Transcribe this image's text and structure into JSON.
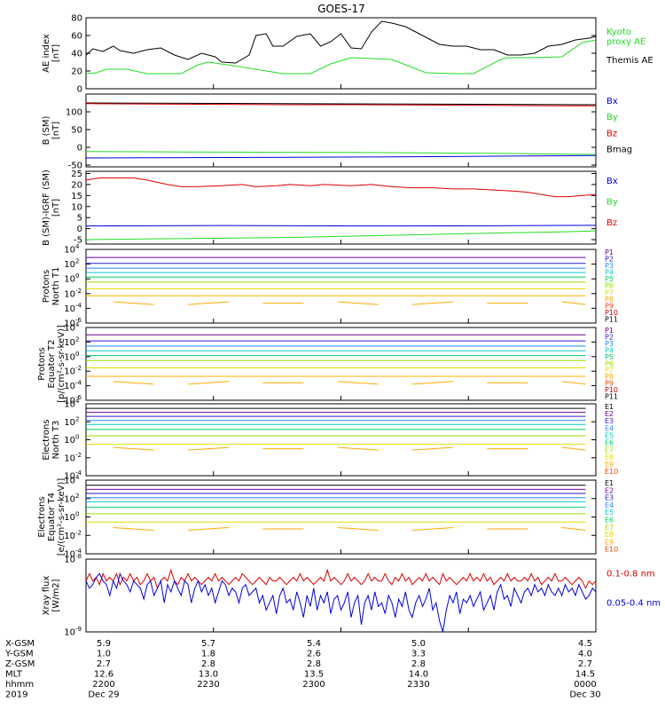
{
  "title": "GOES-17",
  "colors": {
    "black": "#000000",
    "green": "#22dd22",
    "red": "#dd0000",
    "blue": "#0000dd",
    "pal": [
      "#000000",
      "#6a0090",
      "#2a1acc",
      "#2288ff",
      "#00cccc",
      "#00cc66",
      "#99dd00",
      "#dddd00",
      "#ffaa00",
      "#ee4400",
      "#cc0000"
    ]
  },
  "footer": {
    "rows": [
      {
        "label": "X-GSM",
        "values": [
          "5.9",
          "5.7",
          "5.4",
          "5.0",
          "4.5"
        ]
      },
      {
        "label": "Y-GSM",
        "values": [
          "1.0",
          "1.8",
          "2.6",
          "3.3",
          "4.0"
        ]
      },
      {
        "label": "Z-GSM",
        "values": [
          "2.7",
          "2.8",
          "2.8",
          "2.8",
          "2.7"
        ]
      },
      {
        "label": "MLT",
        "values": [
          "12.6",
          "13.0",
          "13.5",
          "14.0",
          "14.5"
        ]
      },
      {
        "label": "hhmm",
        "values": [
          "2200",
          "2230",
          "2300",
          "2330",
          "0000"
        ]
      },
      {
        "label": "2019",
        "values": [
          "Dec 29",
          "",
          "",
          "",
          "Dec 30"
        ]
      }
    ]
  },
  "chart_data": [
    {
      "id": "ae",
      "type": "line",
      "ylabel": "AE index\n[nT]",
      "ylim": [
        0,
        80
      ],
      "ticks": [
        0,
        20,
        40,
        60,
        80
      ],
      "legend": [
        {
          "text": "Kyoto\nproxy AE",
          "color": "green"
        },
        {
          "text": "Themis AE",
          "color": "black"
        }
      ],
      "series": [
        {
          "name": "Kyoto proxy AE",
          "color": "green",
          "x": [
            0,
            3,
            6,
            12,
            18,
            28,
            33,
            36,
            45,
            58,
            60,
            62,
            66,
            72,
            78,
            90,
            100,
            109,
            114,
            122,
            124,
            130,
            140,
            146,
            150
          ],
          "y": [
            17,
            18,
            22,
            22,
            17,
            17,
            27,
            30,
            25,
            17,
            17,
            17,
            17,
            28,
            35,
            33,
            18,
            17,
            17,
            33,
            35,
            35,
            36,
            52,
            55
          ]
        },
        {
          "name": "Themis AE",
          "color": "black",
          "x": [
            0,
            2,
            5,
            8,
            10,
            14,
            18,
            22,
            26,
            30,
            34,
            38,
            40,
            44,
            48,
            50,
            53,
            55,
            58,
            62,
            66,
            69,
            72,
            75,
            78,
            81,
            84,
            87,
            90,
            94,
            98,
            100,
            104,
            108,
            112,
            116,
            120,
            124,
            128,
            132,
            136,
            140,
            144,
            148,
            150
          ],
          "y": [
            38,
            45,
            42,
            48,
            43,
            40,
            44,
            46,
            38,
            33,
            40,
            36,
            30,
            29,
            38,
            60,
            62,
            48,
            48,
            59,
            62,
            48,
            53,
            62,
            46,
            45,
            64,
            76,
            74,
            70,
            62,
            58,
            50,
            48,
            48,
            44,
            44,
            38,
            38,
            40,
            48,
            50,
            55,
            57,
            59
          ]
        }
      ]
    },
    {
      "id": "b",
      "type": "line",
      "ylabel": "B (SM)\n[nT]",
      "ylim": [
        -55,
        150
      ],
      "ticks": [
        -50,
        0,
        50,
        100
      ],
      "tick_labels": [
        "-50",
        "0",
        "50",
        "100"
      ],
      "legend": [
        {
          "text": "Bx",
          "color": "blue"
        },
        {
          "text": "By",
          "color": "green"
        },
        {
          "text": "Bz",
          "color": "red"
        },
        {
          "text": "Bmag",
          "color": "black"
        }
      ],
      "series": [
        {
          "name": "Bmag",
          "color": "black",
          "x": [
            0,
            150
          ],
          "y": [
            125,
            120
          ]
        },
        {
          "name": "Bz",
          "color": "red",
          "x": [
            0,
            20,
            40,
            60,
            80,
            100,
            120,
            140,
            150
          ],
          "y": [
            123,
            122,
            121,
            120,
            120,
            119,
            118,
            117,
            117
          ]
        },
        {
          "name": "By",
          "color": "green",
          "x": [
            0,
            30,
            60,
            90,
            120,
            150
          ],
          "y": [
            -12,
            -13,
            -14,
            -15,
            -17,
            -20
          ]
        },
        {
          "name": "Bx",
          "color": "blue",
          "x": [
            0,
            30,
            60,
            90,
            120,
            150
          ],
          "y": [
            -30,
            -29,
            -28,
            -27,
            -25,
            -23
          ]
        }
      ]
    },
    {
      "id": "db",
      "type": "line",
      "ylabel": "B (SM)-IGRF (SM)\n[nT]",
      "ylim": [
        -7,
        26
      ],
      "ticks": [
        -5,
        0,
        5,
        10,
        15,
        20,
        25
      ],
      "legend": [
        {
          "text": "Bx",
          "color": "blue"
        },
        {
          "text": "By",
          "color": "green"
        },
        {
          "text": "Bz",
          "color": "red"
        }
      ],
      "series": [
        {
          "name": "Bz",
          "color": "red",
          "x": [
            0,
            4,
            14,
            18,
            24,
            28,
            32,
            40,
            46,
            50,
            56,
            60,
            66,
            70,
            78,
            84,
            90,
            96,
            102,
            108,
            114,
            120,
            126,
            130,
            134,
            138,
            142,
            146,
            150
          ],
          "y": [
            22,
            23,
            23,
            22,
            20,
            19,
            19,
            19.5,
            20,
            19,
            19.5,
            20,
            19.5,
            20,
            19.5,
            20,
            19,
            18.5,
            18.5,
            18,
            18,
            17.5,
            17,
            16.5,
            15.5,
            14.5,
            14.5,
            15,
            15.5
          ]
        },
        {
          "name": "Bx",
          "color": "blue",
          "x": [
            0,
            40,
            80,
            120,
            150
          ],
          "y": [
            1.2,
            1.4,
            1.2,
            1.3,
            1.5
          ]
        },
        {
          "name": "By",
          "color": "green",
          "x": [
            0,
            30,
            60,
            90,
            120,
            140,
            150
          ],
          "y": [
            -5,
            -4.5,
            -4,
            -3,
            -2,
            -1.5,
            -1
          ]
        }
      ]
    },
    {
      "id": "pn",
      "type": "line",
      "log": true,
      "ylabel": "Protons\nNorth T1",
      "ylim": [
        -6,
        4
      ],
      "tick_exp": [
        -6,
        -4,
        -2,
        0,
        2,
        4
      ],
      "legend_start": 1,
      "legend": [
        "P1",
        "P2",
        "P3",
        "P4",
        "P5",
        "P6",
        "P7",
        "P8",
        "P9",
        "P10",
        "P11"
      ],
      "levels": [
        2.9,
        2.1,
        1.45,
        0.85,
        0.25,
        -0.45,
        -1.35,
        -2.3,
        -3.3
      ],
      "gap_levels": [
        -3.3
      ],
      "x_end": 147
    },
    {
      "id": "pe",
      "type": "line",
      "log": true,
      "ylabel": "Protons\nEquator T2\n[p/(cm²-s-sr-keV)]",
      "ylim": [
        -6,
        4
      ],
      "tick_exp": [
        -6,
        -4,
        -2,
        0,
        2,
        4
      ],
      "legend_start": 1,
      "legend": [
        "P1",
        "P2",
        "P3",
        "P4",
        "P5",
        "P6",
        "P7",
        "P8",
        "P9",
        "P10",
        "P11"
      ],
      "levels": [
        3.0,
        2.15,
        1.45,
        0.8,
        0.15,
        -0.55,
        -1.55,
        -2.7,
        -3.6
      ],
      "gap_levels": [
        -3.6
      ],
      "x_end": 147
    },
    {
      "id": "en",
      "type": "line",
      "log": true,
      "ylabel": "Electrons\nNorth T3",
      "ylim": [
        -4,
        4
      ],
      "tick_exp": [
        -4,
        -2,
        0,
        2,
        4
      ],
      "legend_start": 0,
      "legend": [
        "E1",
        "E2",
        "E3",
        "E4",
        "E5",
        "E6",
        "E7",
        "E8",
        "E9",
        "E10"
      ],
      "levels": [
        3.5,
        3.05,
        2.6,
        2.15,
        1.7,
        1.15,
        0.45,
        -0.5,
        -1.0
      ],
      "gap_levels": [
        -1.0
      ],
      "x_end": 147
    },
    {
      "id": "ee",
      "type": "line",
      "log": true,
      "ylabel": "Electrons\nEquator T4\n[e/(cm²-s-sr-keV)]",
      "ylim": [
        -4,
        4
      ],
      "tick_exp": [
        -4,
        -2,
        0,
        2,
        4
      ],
      "legend_start": 0,
      "legend": [
        "E1",
        "E2",
        "E3",
        "E4",
        "E5",
        "E6",
        "E7",
        "E8",
        "E9",
        "E10"
      ],
      "levels": [
        3.45,
        3.0,
        2.55,
        2.1,
        1.65,
        1.05,
        0.35,
        -0.55,
        -1.3
      ],
      "gap_levels": [
        -1.3
      ],
      "x_end": 147
    },
    {
      "id": "xray",
      "type": "line",
      "log": true,
      "ylabel": "Xray flux\n[W/m2]",
      "ylim": [
        -9,
        -8
      ],
      "tick_exp": [
        -9,
        -8
      ],
      "legend": [
        {
          "text": "0.1-0.8 nm",
          "color": "red"
        },
        {
          "text": "0.05-0.4 nm",
          "color": "blue"
        }
      ],
      "series": [
        {
          "name": "0.1-0.8 nm",
          "color": "red",
          "y": [
            -8.3,
            -8.2,
            -8.3,
            -8.25,
            -8.35,
            -8.2,
            -8.3,
            -8.25,
            -8.3,
            -8.2,
            -8.35,
            -8.25,
            -8.3,
            -8.2,
            -8.3,
            -8.25,
            -8.35,
            -8.3,
            -8.2,
            -8.3,
            -8.25,
            -8.4,
            -8.3,
            -8.25,
            -8.3,
            -8.15,
            -8.3,
            -8.35,
            -8.25,
            -8.3,
            -8.2,
            -8.3,
            -8.25,
            -8.3,
            -8.35,
            -8.3,
            -8.25,
            -8.3,
            -8.2,
            -8.3,
            -8.25,
            -8.3,
            -8.35,
            -8.3,
            -8.25,
            -8.3,
            -8.2,
            -8.25,
            -8.3,
            -8.35,
            -8.3,
            -8.25,
            -8.3,
            -8.35,
            -8.25,
            -8.3,
            -8.3,
            -8.25,
            -8.3,
            -8.35,
            -8.3,
            -8.25,
            -8.3,
            -8.2,
            -8.3,
            -8.25,
            -8.3,
            -8.35,
            -8.3,
            -8.25,
            -8.3,
            -8.15,
            -8.3,
            -8.25,
            -8.3,
            -8.35,
            -8.3,
            -8.2,
            -8.3,
            -8.25,
            -8.3,
            -8.35,
            -8.3,
            -8.2,
            -8.3,
            -8.25,
            -8.3,
            -8.3,
            -8.2,
            -8.3,
            -8.35,
            -8.25,
            -8.3,
            -8.2,
            -8.3,
            -8.25,
            -8.35,
            -8.3,
            -8.25,
            -8.3,
            -8.2,
            -8.3,
            -8.25,
            -8.3,
            -8.35,
            -8.2,
            -8.3,
            -8.25,
            -8.3,
            -8.35,
            -8.3,
            -8.25,
            -8.3,
            -8.2,
            -8.3,
            -8.25,
            -8.3,
            -8.2,
            -8.3,
            -8.25,
            -8.35,
            -8.3,
            -8.25,
            -8.3,
            -8.2,
            -8.3,
            -8.25,
            -8.3,
            -8.3,
            -8.25,
            -8.3,
            -8.2,
            -8.3,
            -8.25,
            -8.35,
            -8.3,
            -8.25,
            -8.3,
            -8.2,
            -8.3,
            -8.3,
            -8.25,
            -8.3,
            -8.35,
            -8.3,
            -8.25,
            -8.3,
            -8.4,
            -8.3,
            -8.35,
            -8.3
          ]
        },
        {
          "name": "0.05-0.4 nm",
          "color": "blue",
          "y": [
            -8.3,
            -8.4,
            -8.35,
            -8.25,
            -8.2,
            -8.3,
            -8.35,
            -8.5,
            -8.3,
            -8.4,
            -8.2,
            -8.3,
            -8.35,
            -8.45,
            -8.3,
            -8.35,
            -8.4,
            -8.55,
            -8.35,
            -8.3,
            -8.5,
            -8.4,
            -8.3,
            -8.6,
            -8.35,
            -8.45,
            -8.3,
            -8.4,
            -8.5,
            -8.3,
            -8.35,
            -8.6,
            -8.4,
            -8.3,
            -8.45,
            -8.35,
            -8.5,
            -8.4,
            -8.6,
            -8.45,
            -8.3,
            -8.35,
            -8.5,
            -8.4,
            -8.45,
            -8.6,
            -8.4,
            -8.35,
            -8.5,
            -8.45,
            -8.4,
            -8.6,
            -8.5,
            -8.7,
            -8.6,
            -8.5,
            -8.75,
            -8.5,
            -8.4,
            -8.6,
            -8.55,
            -8.7,
            -8.45,
            -8.6,
            -8.8,
            -8.5,
            -8.65,
            -8.4,
            -8.7,
            -8.5,
            -8.6,
            -8.45,
            -8.75,
            -8.55,
            -8.5,
            -8.7,
            -8.6,
            -8.45,
            -8.8,
            -8.6,
            -8.5,
            -8.9,
            -8.6,
            -8.5,
            -8.7,
            -8.45,
            -8.65,
            -8.6,
            -8.75,
            -8.5,
            -8.6,
            -8.8,
            -8.55,
            -8.65,
            -8.45,
            -8.7,
            -8.8,
            -8.6,
            -8.5,
            -8.65,
            -8.55,
            -8.4,
            -8.7,
            -8.6,
            -8.85,
            -9.0,
            -8.7,
            -8.5,
            -8.6,
            -8.45,
            -8.75,
            -8.55,
            -8.6,
            -8.5,
            -8.65,
            -8.55,
            -8.45,
            -8.7,
            -8.6,
            -8.5,
            -8.7,
            -8.45,
            -8.35,
            -8.55,
            -8.5,
            -8.65,
            -8.4,
            -8.5,
            -8.6,
            -8.45,
            -8.4,
            -8.5,
            -8.35,
            -8.45,
            -8.4,
            -8.5,
            -8.35,
            -8.45,
            -8.5,
            -8.4,
            -8.5,
            -8.35,
            -8.45,
            -8.4,
            -8.5,
            -8.35,
            -8.45,
            -8.55,
            -8.5,
            -8.4,
            -8.45
          ]
        }
      ]
    }
  ]
}
